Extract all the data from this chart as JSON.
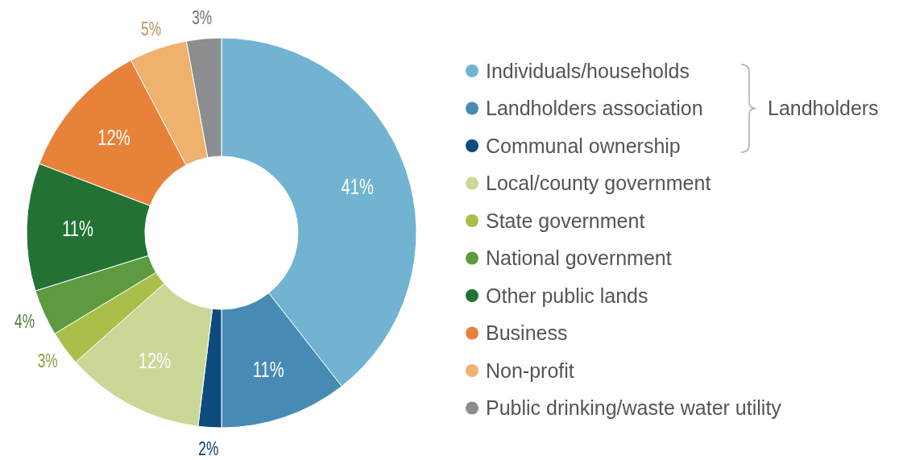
{
  "chart_data": {
    "type": "donut",
    "categories": [
      "Individuals/households",
      "Landholders association",
      "Communal ownership",
      "Local/county government",
      "State government",
      "National government",
      "Other public lands",
      "Business",
      "Non-profit",
      "Public drinking/waste water utility"
    ],
    "values": [
      41,
      11,
      2,
      12,
      3,
      4,
      11,
      12,
      5,
      3
    ],
    "value_labels": [
      "41%",
      "11%",
      "2%",
      "12%",
      "3%",
      "4%",
      "11%",
      "12%",
      "5%",
      "3%"
    ],
    "colors": [
      "#72b3d1",
      "#478bb5",
      "#0d4b7f",
      "#c9d896",
      "#a8c04a",
      "#5e9a40",
      "#237234",
      "#e8823a",
      "#efb16e",
      "#8c8d91"
    ],
    "legend": "right",
    "annotations": [
      "Landholders"
    ]
  }
}
